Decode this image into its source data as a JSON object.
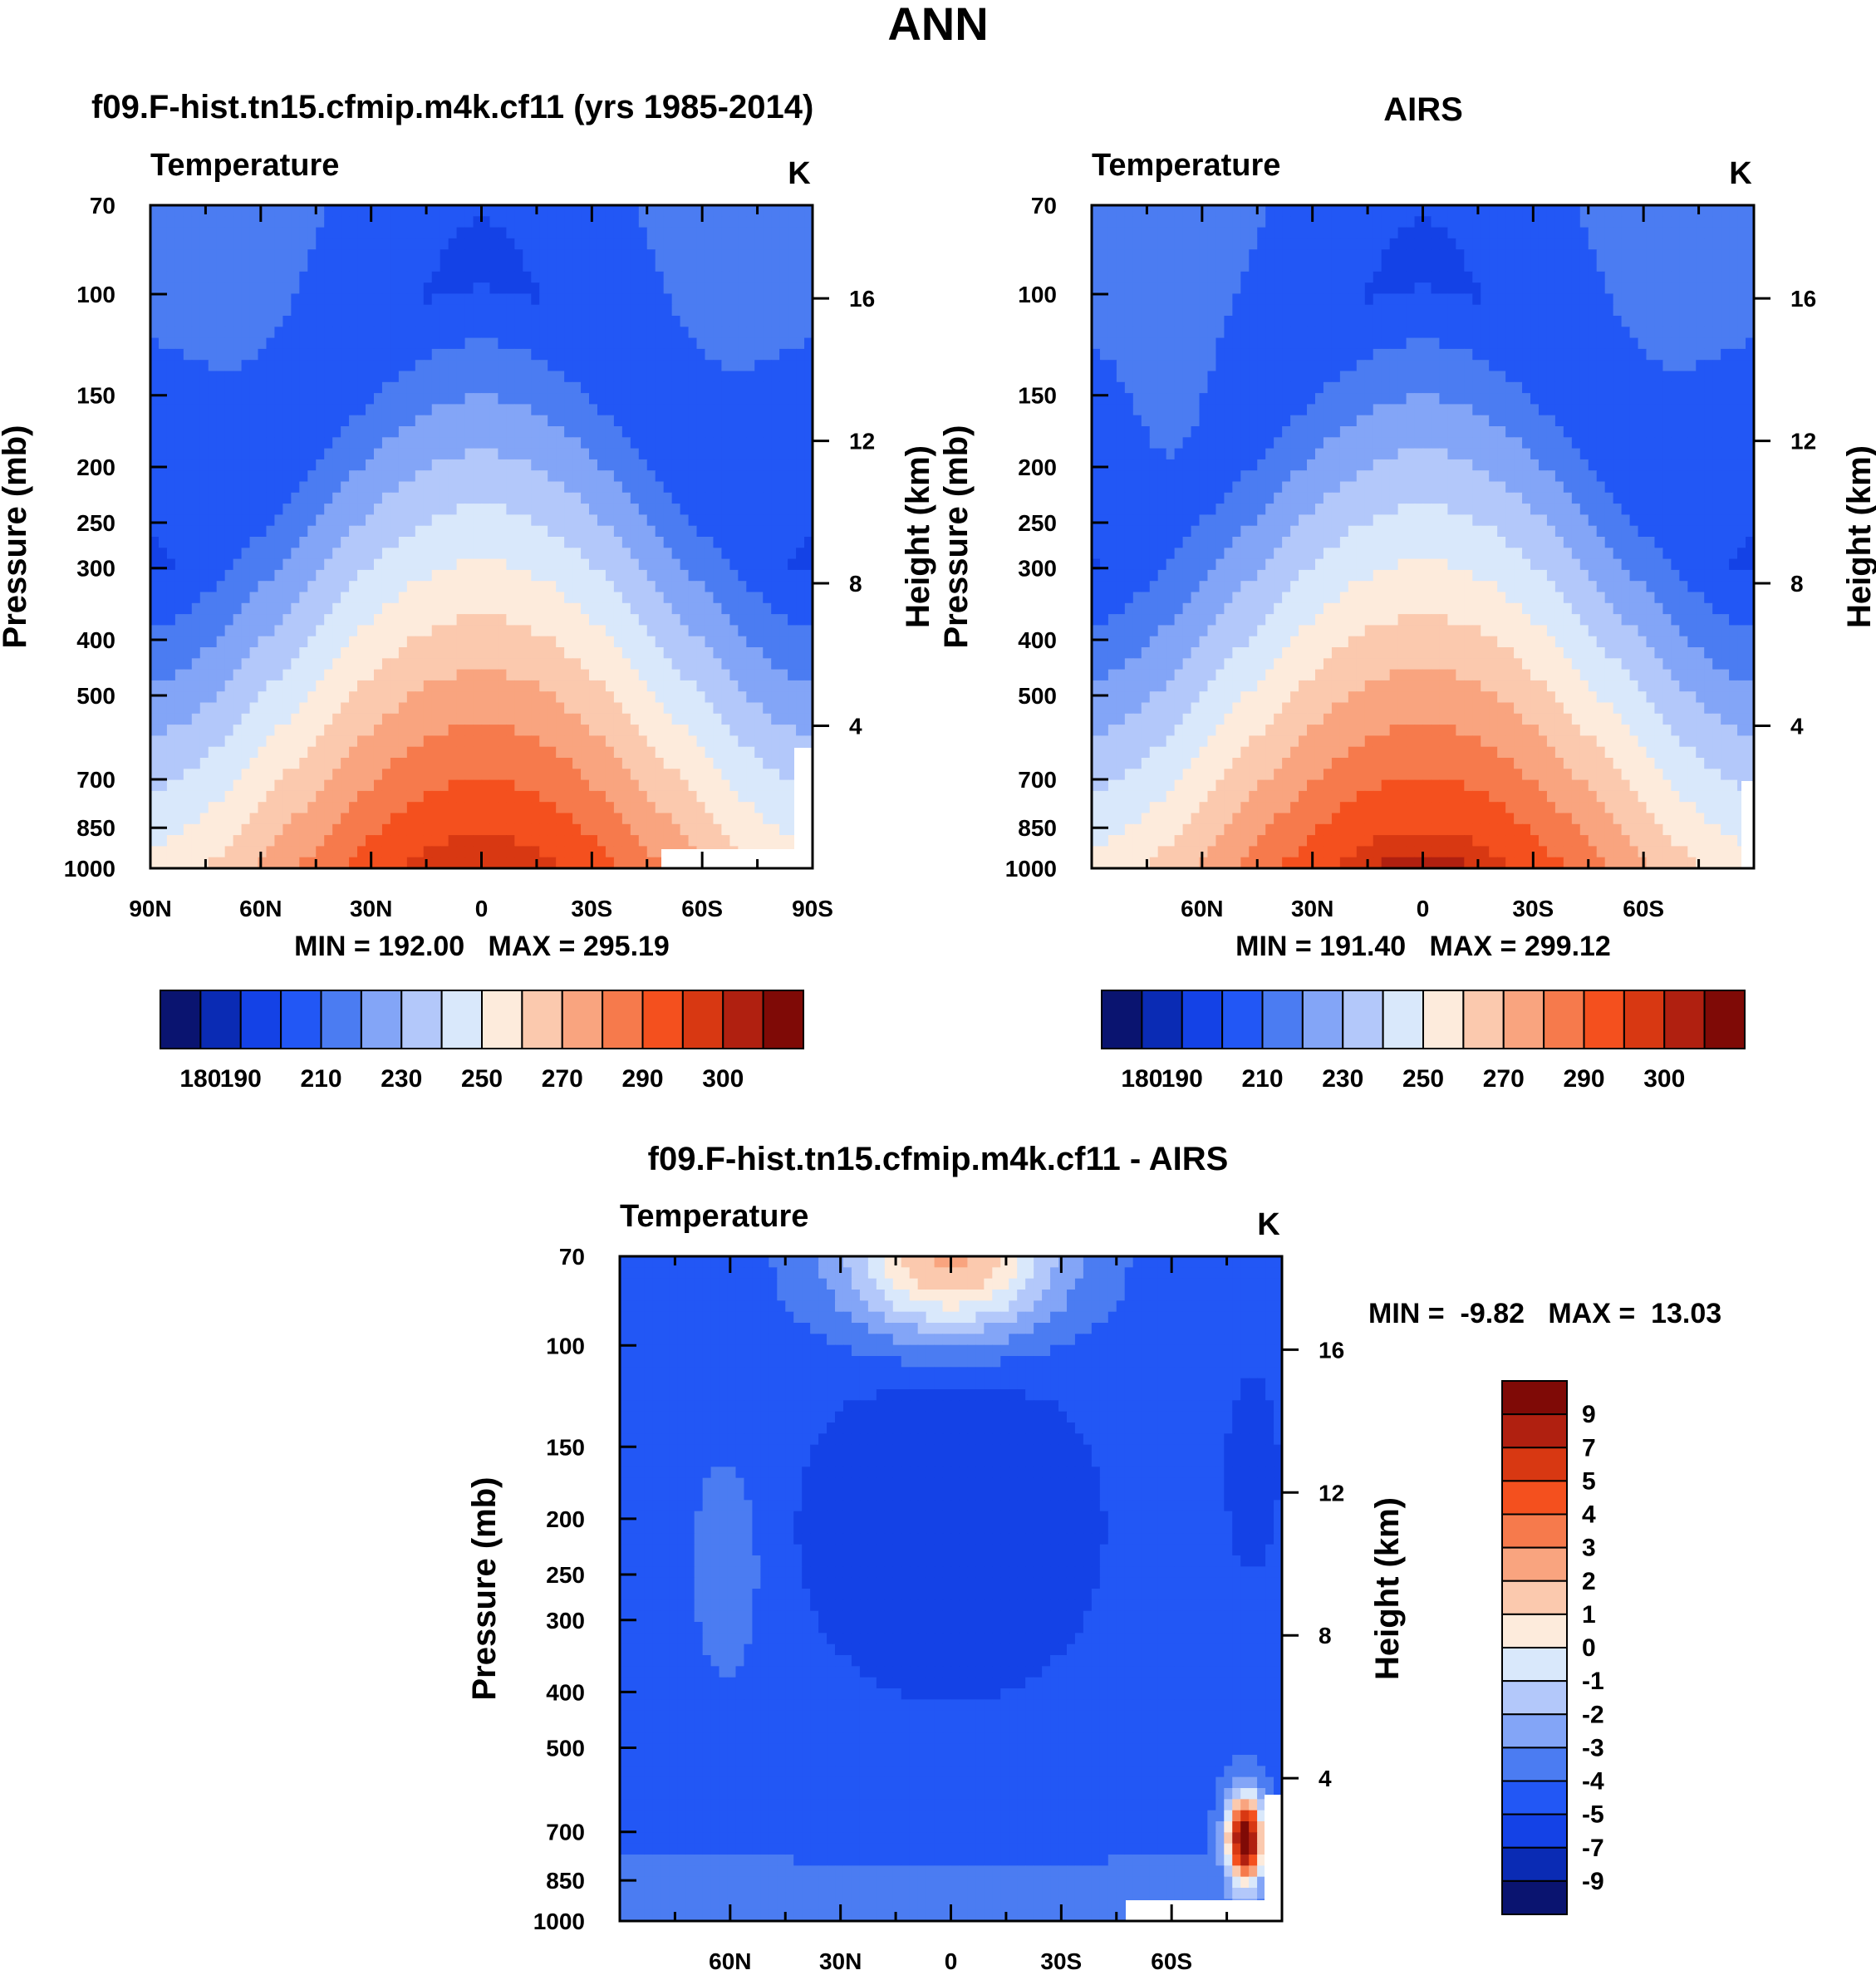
{
  "title": "ANN",
  "chart_data": [
    {
      "type": "heatmap",
      "title": "f09.F-hist.tn15.cfmip.m4k.cf11 (yrs 1985-2014)",
      "subtitle_left": "Temperature",
      "subtitle_right": "K",
      "ylabel": "Pressure (mb)",
      "ylabel_right": "Height (km)",
      "x_ticks": [
        "90N",
        "60N",
        "30N",
        "0",
        "30S",
        "60S",
        "90S"
      ],
      "x_range": [
        90,
        -90
      ],
      "y_ticks": [
        "70",
        "100",
        "150",
        "200",
        "250",
        "300",
        "400",
        "500",
        "700",
        "850",
        "1000"
      ],
      "y_range_mb": [
        70,
        1000
      ],
      "height_ticks": [
        "16",
        "12",
        "8",
        "4"
      ],
      "min_max_label": "MIN = 192.00   MAX = 295.19",
      "min": 192.0,
      "max": 295.19,
      "tropopause_min_k": 192.0,
      "surface_max_k": 295.19,
      "colorbar_labels": [
        "180",
        "190",
        "210",
        "230",
        "250",
        "270",
        "290",
        "300"
      ],
      "contour_levels": [
        180,
        185,
        190,
        200,
        210,
        220,
        230,
        240,
        250,
        260,
        270,
        280,
        290,
        295,
        300
      ],
      "colors": [
        "#0a1470",
        "#0a2bb4",
        "#1442e6",
        "#2257f5",
        "#4b7cf2",
        "#83a5f7",
        "#b3c8fa",
        "#d9e8fb",
        "#fdebdc",
        "#fbc9ae",
        "#f9a47f",
        "#f67a4c",
        "#f4501e",
        "#d83812",
        "#b02010",
        "#7f0a06"
      ]
    },
    {
      "type": "heatmap",
      "title": "AIRS",
      "subtitle_left": "Temperature",
      "subtitle_right": "K",
      "ylabel": "Pressure (mb)",
      "ylabel_right": "Height (km)",
      "x_ticks": [
        "60N",
        "30N",
        "0",
        "30S",
        "60S"
      ],
      "x_range": [
        90,
        -90
      ],
      "y_ticks": [
        "70",
        "100",
        "150",
        "200",
        "250",
        "300",
        "400",
        "500",
        "700",
        "850",
        "1000"
      ],
      "y_range_mb": [
        70,
        1000
      ],
      "height_ticks": [
        "16",
        "12",
        "8",
        "4"
      ],
      "min_max_label": "MIN = 191.40   MAX = 299.12",
      "min": 191.4,
      "max": 299.12,
      "colorbar_labels": [
        "180",
        "190",
        "210",
        "230",
        "250",
        "270",
        "290",
        "300"
      ],
      "contour_levels": [
        180,
        185,
        190,
        200,
        210,
        220,
        230,
        240,
        250,
        260,
        270,
        280,
        290,
        295,
        300
      ],
      "colors": [
        "#0a1470",
        "#0a2bb4",
        "#1442e6",
        "#2257f5",
        "#4b7cf2",
        "#83a5f7",
        "#b3c8fa",
        "#d9e8fb",
        "#fdebdc",
        "#fbc9ae",
        "#f9a47f",
        "#f67a4c",
        "#f4501e",
        "#d83812",
        "#b02010",
        "#7f0a06"
      ]
    },
    {
      "type": "heatmap",
      "title": "f09.F-hist.tn15.cfmip.m4k.cf11 - AIRS",
      "subtitle_left": "Temperature",
      "subtitle_right": "K",
      "ylabel": "Pressure (mb)",
      "ylabel_right": "Height (km)",
      "x_ticks": [
        "60N",
        "30N",
        "0",
        "30S",
        "60S"
      ],
      "x_range": [
        90,
        -90
      ],
      "y_ticks": [
        "70",
        "100",
        "150",
        "200",
        "250",
        "300",
        "400",
        "500",
        "700",
        "850",
        "1000"
      ],
      "y_range_mb": [
        70,
        1000
      ],
      "height_ticks": [
        "16",
        "12",
        "8",
        "4"
      ],
      "min_max_label": "MIN =  -9.82   MAX =  13.03",
      "min": -9.82,
      "max": 13.03,
      "colorbar_labels": [
        "9",
        "7",
        "5",
        "4",
        "3",
        "2",
        "1",
        "0",
        "-1",
        "-2",
        "-3",
        "-4",
        "-5",
        "-7",
        "-9"
      ],
      "contour_levels": [
        -9,
        -7,
        -5,
        -4,
        -3,
        -2,
        -1,
        0,
        1,
        2,
        3,
        4,
        5,
        7,
        9
      ],
      "colors": [
        "#0a1470",
        "#0a2bb4",
        "#1442e6",
        "#2257f5",
        "#4b7cf2",
        "#83a5f7",
        "#b3c8fa",
        "#d9e8fb",
        "#fdebdc",
        "#fbc9ae",
        "#f9a47f",
        "#f67a4c",
        "#f4501e",
        "#d83812",
        "#b02010",
        "#7f0a06"
      ]
    }
  ]
}
